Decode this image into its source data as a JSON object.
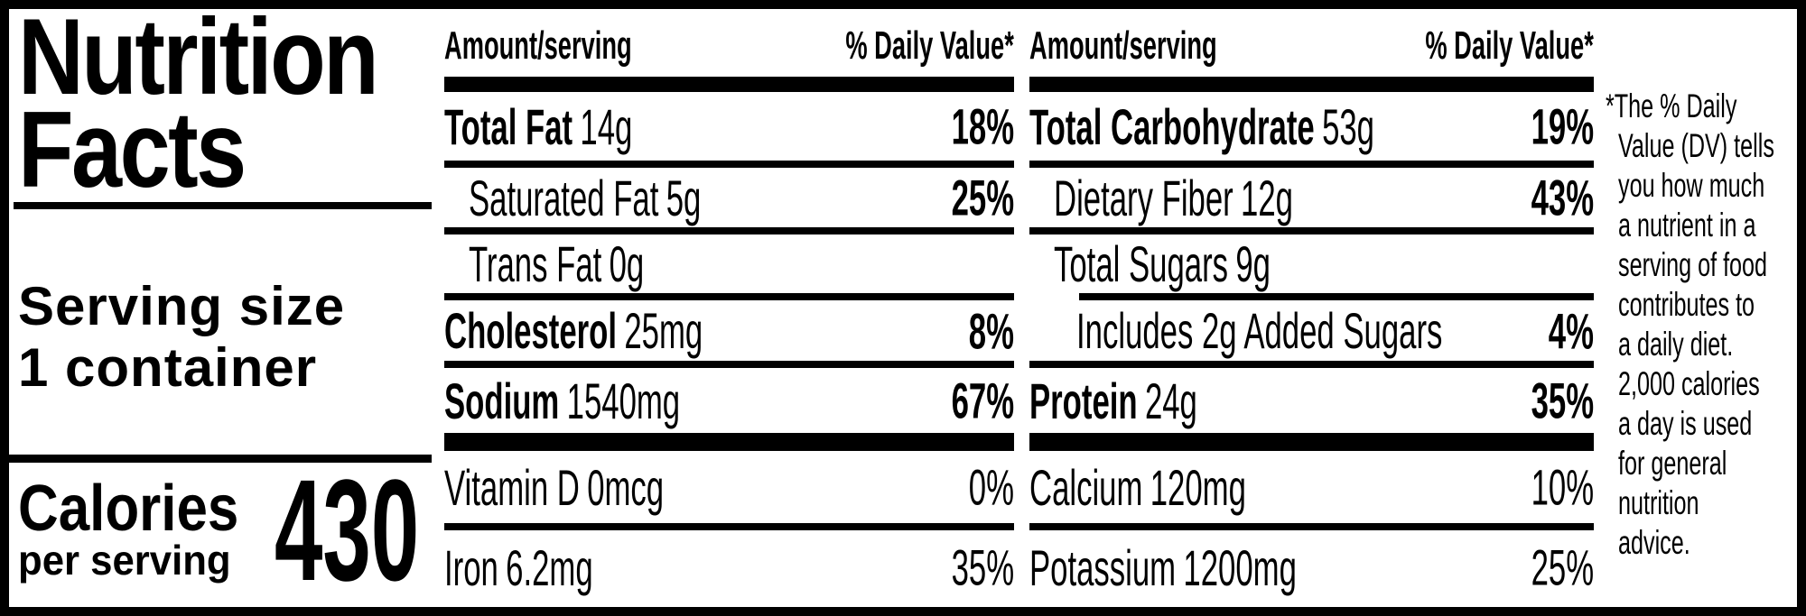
{
  "label": {
    "title_line1": "Nutrition",
    "title_line2": "Facts",
    "serving_size_label": "Serving size",
    "serving_size_value": "1 container",
    "calories_label": "Calories",
    "calories_sublabel": "per serving",
    "calories_value": "430"
  },
  "columns": [
    {
      "header_amount": "Amount/serving",
      "header_dv": "% Daily Value*",
      "rows": [
        {
          "name": "Total Fat",
          "amount": "14g",
          "pct": "18%"
        },
        {
          "name": "Saturated Fat",
          "amount": "5g",
          "pct": "25%"
        },
        {
          "name": "Trans Fat",
          "amount": "0g",
          "pct": ""
        },
        {
          "name": "Cholesterol",
          "amount": "25mg",
          "pct": "8%"
        },
        {
          "name": "Sodium",
          "amount": "1540mg",
          "pct": "67%"
        },
        {
          "name": "Vitamin D",
          "amount": "0mcg",
          "pct": "0%"
        },
        {
          "name": "Iron",
          "amount": "6.2mg",
          "pct": "35%"
        }
      ]
    },
    {
      "header_amount": "Amount/serving",
      "header_dv": "% Daily Value*",
      "rows": [
        {
          "name": "Total Carbohydrate",
          "amount": "53g",
          "pct": "19%"
        },
        {
          "name": "Dietary Fiber",
          "amount": "12g",
          "pct": "43%"
        },
        {
          "name": "Total Sugars",
          "amount": "9g",
          "pct": ""
        },
        {
          "name": "Includes 2g Added Sugars",
          "amount": "",
          "pct": "4%"
        },
        {
          "name": "Protein",
          "amount": "24g",
          "pct": "35%"
        },
        {
          "name": "Calcium",
          "amount": "120mg",
          "pct": "10%"
        },
        {
          "name": "Potassium",
          "amount": "1200mg",
          "pct": "25%"
        }
      ]
    }
  ],
  "footnote": {
    "full_text": "*The % Daily Value (DV) tells you how much a nutrient in a serving of food contributes to a daily diet. 2,000 calories a day is used for general nutrition advice.",
    "lines": [
      "*The % Daily",
      "Value (DV) tells",
      "you how much",
      "a nutrient in a",
      "serving of food",
      "contributes to",
      "a daily diet.",
      "2,000 calories",
      "a day is used",
      "for general",
      "nutrition",
      "advice."
    ]
  },
  "colors": {
    "ink": "#000000",
    "background": "#ffffff"
  }
}
